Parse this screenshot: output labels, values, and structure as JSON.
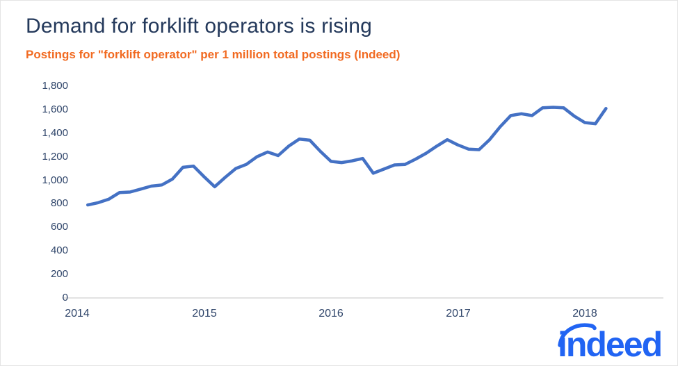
{
  "header": {
    "title": "Demand for forklift operators is rising",
    "subtitle": "Postings for \"forklift operator\" per 1 million total postings (Indeed)"
  },
  "brand": {
    "logo_text": "indeed",
    "logo_color": "#2164F3"
  },
  "colors": {
    "title": "#24395B",
    "subtitle": "#F16A21",
    "axis_label": "#2E4469",
    "line": "#4471C4",
    "axis_line": "#D9D9D9",
    "background": "#FFFFFF"
  },
  "chart_data": {
    "type": "line",
    "title": "Demand for forklift operators is rising",
    "subtitle": "Postings for \"forklift operator\" per 1 million total postings (Indeed)",
    "series_name": "Forklift operator postings per 1 million total postings",
    "x_unit": "month",
    "months": [
      "2014-02",
      "2014-03",
      "2014-04",
      "2014-05",
      "2014-06",
      "2014-07",
      "2014-08",
      "2014-09",
      "2014-10",
      "2014-11",
      "2014-12",
      "2015-01",
      "2015-02",
      "2015-03",
      "2015-04",
      "2015-05",
      "2015-06",
      "2015-07",
      "2015-08",
      "2015-09",
      "2015-10",
      "2015-11",
      "2015-12",
      "2016-01",
      "2016-02",
      "2016-03",
      "2016-04",
      "2016-05",
      "2016-06",
      "2016-07",
      "2016-08",
      "2016-09",
      "2016-10",
      "2016-11",
      "2016-12",
      "2017-01",
      "2017-02",
      "2017-03",
      "2017-04",
      "2017-05",
      "2017-06",
      "2017-07",
      "2017-08",
      "2017-09",
      "2017-10",
      "2017-11",
      "2017-12",
      "2018-01",
      "2018-02",
      "2018-03"
    ],
    "values": [
      790,
      810,
      840,
      895,
      900,
      925,
      950,
      960,
      1010,
      1110,
      1120,
      1030,
      945,
      1025,
      1100,
      1135,
      1200,
      1240,
      1210,
      1290,
      1350,
      1340,
      1245,
      1160,
      1150,
      1165,
      1185,
      1060,
      1095,
      1130,
      1135,
      1180,
      1230,
      1290,
      1345,
      1300,
      1265,
      1260,
      1345,
      1455,
      1550,
      1565,
      1550,
      1615,
      1620,
      1615,
      1545,
      1490,
      1480,
      1610
    ],
    "x_tick_labels": [
      "2014",
      "2015",
      "2016",
      "2017",
      "2018"
    ],
    "y_ticks": [
      0,
      200,
      400,
      600,
      800,
      1000,
      1200,
      1400,
      1600,
      1800
    ],
    "ylim": [
      0,
      1800
    ],
    "grid": "off",
    "legend": "none"
  }
}
